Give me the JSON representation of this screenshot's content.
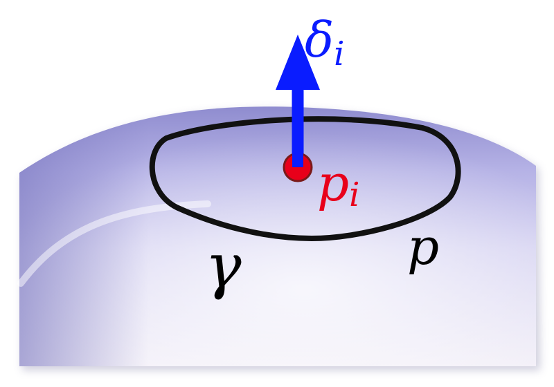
{
  "labels": {
    "delta": "δ",
    "delta_sub": "i",
    "point": "p",
    "point_sub": "i",
    "curve": "γ",
    "surface": "p"
  },
  "colors": {
    "arrow": "#0a1cff",
    "point": "#e8001a",
    "curve": "#111111",
    "surface_light": "#f3f0f8",
    "surface_mid": "#c7c4ee",
    "surface_dark": "#8f8ccf",
    "text": "#000000"
  }
}
